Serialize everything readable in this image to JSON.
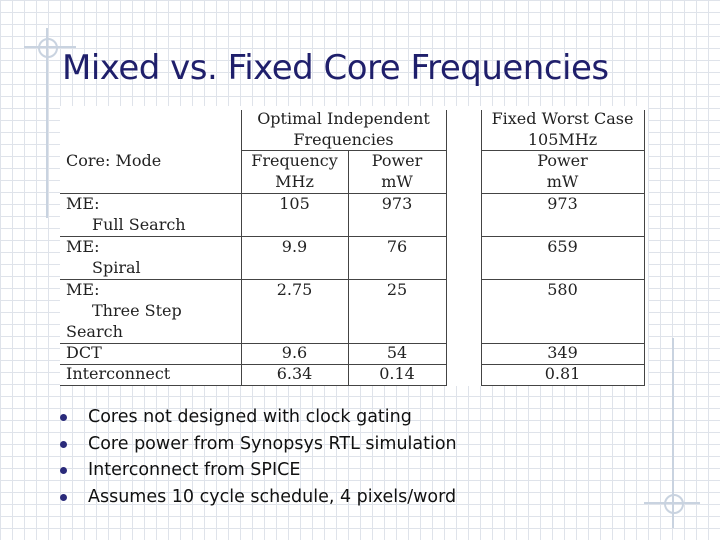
{
  "title": "Mixed vs. Fixed Core Frequencies",
  "table": {
    "group_headers": {
      "optimal_line1": "Optimal Independent",
      "optimal_line2": "Frequencies",
      "fixed_line1": "Fixed Worst Case",
      "fixed_line2": "105MHz"
    },
    "column_headers": {
      "core_mode": "Core: Mode",
      "frequency_line1": "Frequency",
      "frequency_line2": "MHz",
      "power_line1": "Power",
      "power_line2": "mW",
      "fixed_power_line1": "Power",
      "fixed_power_line2": "mW"
    },
    "rows": [
      {
        "label_lines": [
          "ME:",
          "Full Search"
        ],
        "frequency": "105",
        "power": "973",
        "fixed_power": "973"
      },
      {
        "label_lines": [
          "ME:",
          "Spiral"
        ],
        "frequency": "9.9",
        "power": "76",
        "fixed_power": "659"
      },
      {
        "label_lines": [
          "ME:",
          "Three Step",
          "Search"
        ],
        "frequency": "2.75",
        "power": "25",
        "fixed_power": "580"
      },
      {
        "label_lines": [
          "DCT"
        ],
        "frequency": "9.6",
        "power": "54",
        "fixed_power": "349"
      },
      {
        "label_lines": [
          "Interconnect"
        ],
        "frequency": "6.34",
        "power": "0.14",
        "fixed_power": "0.81"
      }
    ]
  },
  "bullets": [
    "Cores not designed with clock gating",
    "Core power from Synopsys RTL simulation",
    "Interconnect from SPICE",
    "Assumes 10 cycle schedule, 4 pixels/word"
  ]
}
